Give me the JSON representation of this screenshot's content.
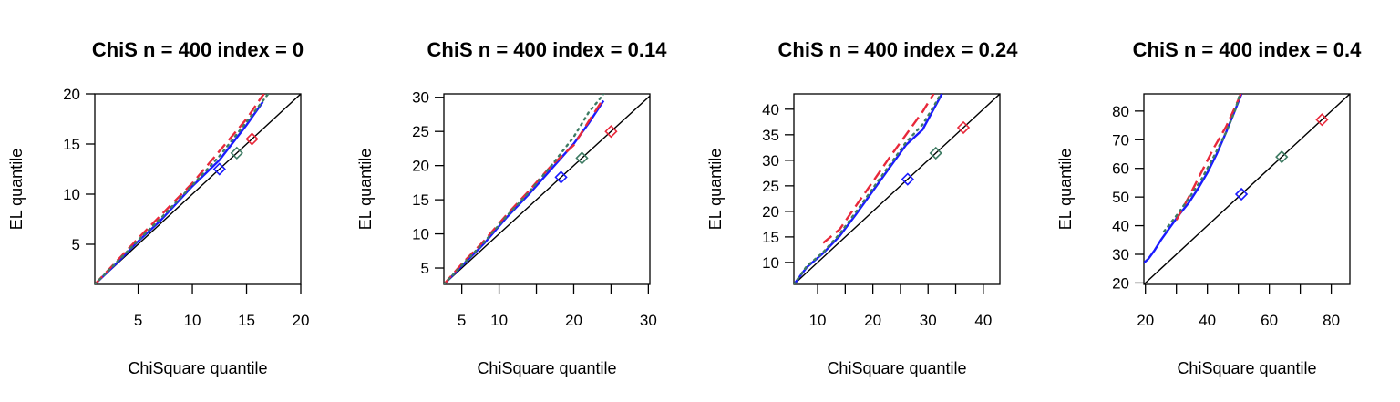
{
  "colors": {
    "reference": "#000000",
    "blue": "#1a1aff",
    "red": "#e8283a",
    "green": "#3e7b63"
  },
  "chart_data": [
    {
      "type": "line",
      "title": "ChiS n = 400 index = 0",
      "xlabel": "ChiSquare quantile",
      "ylabel": "EL quantile",
      "xlim": [
        1,
        20
      ],
      "ylim": [
        1,
        20
      ],
      "xticks": [
        5,
        10,
        15,
        20
      ],
      "yticks": [
        5,
        10,
        15,
        20
      ],
      "xtick_marks_only": [],
      "series": [
        {
          "color": "blue",
          "dash": "solid",
          "x": [
            1,
            3,
            5,
            7,
            10,
            12.5,
            15,
            16.5
          ],
          "y": [
            1,
            3.1,
            5.3,
            7.3,
            10.8,
            13.4,
            16.9,
            19.2
          ]
        },
        {
          "color": "red",
          "dash": "dashed",
          "x": [
            1,
            3,
            5,
            7,
            10,
            12.5,
            15,
            16.2,
            16.6
          ],
          "y": [
            1,
            3.3,
            5.6,
            7.8,
            11.1,
            14.3,
            17.5,
            19.4,
            20
          ]
        },
        {
          "color": "green",
          "dash": "dotted",
          "x": [
            1,
            3,
            5,
            7,
            10,
            12.5,
            15,
            17
          ],
          "y": [
            1,
            3.2,
            5.4,
            7.5,
            10.9,
            13.8,
            17.2,
            20
          ]
        }
      ],
      "markers": [
        {
          "color": "blue",
          "x": 12.5,
          "y": 12.5
        },
        {
          "color": "green",
          "x": 14.1,
          "y": 14.1
        },
        {
          "color": "red",
          "x": 15.5,
          "y": 15.5
        }
      ]
    },
    {
      "type": "line",
      "title": "ChiS n = 400 index = 0.14",
      "xlabel": "ChiSquare quantile",
      "ylabel": "EL quantile",
      "xlim": [
        2.6,
        30.2
      ],
      "ylim": [
        2.6,
        30.5
      ],
      "xticks": [
        5,
        10,
        20,
        30
      ],
      "yticks": [
        5,
        10,
        15,
        20,
        25,
        30
      ],
      "xtick_marks_only": [
        15,
        25
      ],
      "series": [
        {
          "color": "blue",
          "dash": "solid",
          "x": [
            2.6,
            5,
            8,
            11,
            14,
            17,
            20,
            22,
            24
          ],
          "y": [
            2.6,
            5.3,
            8.6,
            12.4,
            15.8,
            19.5,
            23.2,
            26.2,
            29.5
          ]
        },
        {
          "color": "red",
          "dash": "dashed",
          "x": [
            2.6,
            5,
            8,
            11,
            14,
            17,
            20,
            22,
            24
          ],
          "y": [
            2.6,
            5.6,
            9.0,
            12.8,
            16.3,
            20.0,
            23.0,
            26.5,
            29.8
          ]
        },
        {
          "color": "green",
          "dash": "dotted",
          "x": [
            2.6,
            5,
            8,
            11,
            14,
            17,
            20,
            22,
            23.3,
            24
          ],
          "y": [
            2.6,
            5.4,
            8.8,
            12.6,
            16.1,
            20.0,
            24.2,
            27.8,
            29.5,
            30.5
          ]
        }
      ],
      "markers": [
        {
          "color": "blue",
          "x": 18.3,
          "y": 18.3
        },
        {
          "color": "green",
          "x": 21.1,
          "y": 21.1
        },
        {
          "color": "red",
          "x": 25.0,
          "y": 25.0
        }
      ]
    },
    {
      "type": "line",
      "title": "ChiS n = 400 index = 0.24",
      "xlabel": "ChiSquare quantile",
      "ylabel": "EL quantile",
      "xlim": [
        5.7,
        43
      ],
      "ylim": [
        5.7,
        43
      ],
      "xticks": [
        10,
        20,
        30,
        40
      ],
      "yticks": [
        10,
        15,
        20,
        25,
        30,
        35,
        40
      ],
      "xtick_marks_only": [
        15,
        25,
        35
      ],
      "series": [
        {
          "color": "blue",
          "dash": "solid",
          "x": [
            5.7,
            8,
            11,
            14,
            17,
            20,
            23,
            26,
            29,
            31,
            32.5
          ],
          "y": [
            5.7,
            9.0,
            11.8,
            15.2,
            19.5,
            24.0,
            28.5,
            33.0,
            36.0,
            40.0,
            43.0
          ]
        },
        {
          "color": "red",
          "dash": "dashed",
          "x": [
            11,
            14,
            17,
            20,
            23,
            26,
            29,
            31
          ],
          "y": [
            13.8,
            16.5,
            21.2,
            25.8,
            30.5,
            35.0,
            39.5,
            43.0
          ]
        },
        {
          "color": "green",
          "dash": "dotted",
          "x": [
            5.7,
            8,
            11,
            14,
            17,
            20,
            23,
            26,
            29,
            31,
            32.3
          ],
          "y": [
            5.7,
            9.2,
            12.0,
            15.6,
            20.0,
            24.5,
            29.0,
            33.5,
            37.0,
            40.5,
            43.0
          ]
        }
      ],
      "markers": [
        {
          "color": "blue",
          "x": 26.3,
          "y": 26.3
        },
        {
          "color": "green",
          "x": 31.4,
          "y": 31.4
        },
        {
          "color": "red",
          "x": 36.4,
          "y": 36.4
        }
      ]
    },
    {
      "type": "line",
      "title": "ChiS n = 400 index = 0.4",
      "xlabel": "ChiSquare quantile",
      "ylabel": "EL quantile",
      "xlim": [
        19.5,
        86
      ],
      "ylim": [
        19.5,
        86
      ],
      "xticks": [
        20,
        40,
        60,
        80
      ],
      "yticks": [
        20,
        30,
        40,
        50,
        60,
        70,
        80
      ],
      "xtick_marks_only": [
        30,
        50,
        70
      ],
      "series": [
        {
          "color": "blue",
          "dash": "solid",
          "x": [
            19.5,
            21,
            23,
            25,
            28,
            31,
            34,
            37,
            40,
            43,
            46,
            49,
            51
          ],
          "y": [
            27.0,
            28.5,
            31.5,
            35.0,
            39.5,
            44.0,
            48.0,
            53.0,
            58.5,
            65.0,
            72.5,
            80.5,
            86.0
          ]
        },
        {
          "color": "red",
          "dash": "dashed",
          "x": [
            30,
            34,
            38,
            42,
            46,
            49,
            50.8
          ],
          "y": [
            42.0,
            50.0,
            58.5,
            67.0,
            74.5,
            81.5,
            86.0
          ]
        },
        {
          "color": "green",
          "dash": "dotted",
          "x": [
            26,
            30,
            34,
            38,
            42,
            46,
            49,
            50.5
          ],
          "y": [
            38.0,
            43.5,
            49.5,
            56.0,
            64.0,
            72.5,
            80.5,
            86.0
          ]
        }
      ],
      "markers": [
        {
          "color": "blue",
          "x": 51.0,
          "y": 51.0
        },
        {
          "color": "green",
          "x": 64.0,
          "y": 64.0
        },
        {
          "color": "red",
          "x": 77.0,
          "y": 77.0
        }
      ]
    }
  ]
}
